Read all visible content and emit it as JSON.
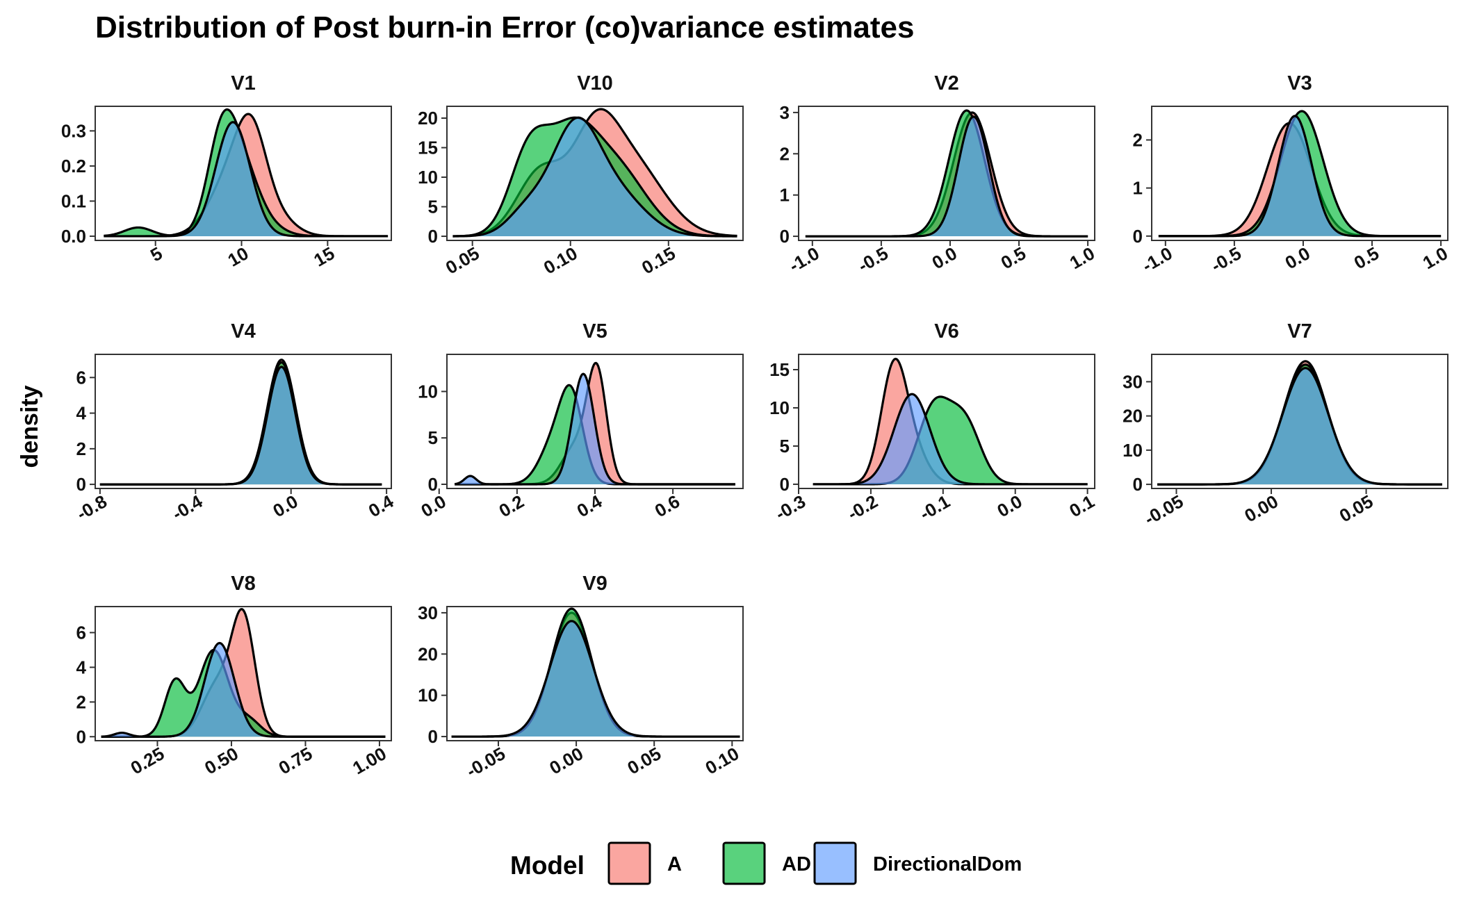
{
  "chart_data": {
    "type": "area",
    "title": "Distribution of Post burn-in Error (co)variance estimates",
    "ylabel": "density",
    "legend": {
      "title": "Model",
      "placement": "bottom",
      "entries": [
        {
          "name": "A",
          "color": "#F8766D"
        },
        {
          "name": "AD",
          "color": "#00BA38"
        },
        {
          "name": "DirectionalDom",
          "color": "#619CFF"
        }
      ]
    },
    "fill_opacity": 0.65,
    "panels": [
      {
        "name": "V1",
        "xlim": [
          1.5,
          18.7
        ],
        "ylim": [
          -0.012,
          0.37
        ],
        "xticks": [
          {
            "value": 5,
            "label": "5"
          },
          {
            "value": 10,
            "label": "10"
          },
          {
            "value": 15,
            "label": "15"
          }
        ],
        "yticks": [
          {
            "value": 0,
            "label": "0.0"
          },
          {
            "value": 0.1,
            "label": "0.1"
          },
          {
            "value": 0.2,
            "label": "0.2"
          },
          {
            "value": 0.3,
            "label": "0.3"
          }
        ],
        "range": [
          2,
          18.5
        ],
        "series": [
          {
            "name": "A",
            "components": [
              {
                "w": 0.55,
                "mu": 10.6,
                "sd": 0.9
              },
              {
                "w": 0.35,
                "mu": 9.3,
                "sd": 1.2
              },
              {
                "w": 0.1,
                "mu": 12.2,
                "sd": 1.0
              }
            ],
            "scale": 0.342,
            "peakx": 10.6
          },
          {
            "name": "AD",
            "components": [
              {
                "w": 0.6,
                "mu": 8.9,
                "sd": 0.85
              },
              {
                "w": 0.3,
                "mu": 10.2,
                "sd": 0.9
              },
              {
                "w": 0.05,
                "mu": 4.0,
                "sd": 0.8
              },
              {
                "w": 0.05,
                "mu": 11.5,
                "sd": 1.0
              }
            ],
            "scale": 0.35,
            "peakx": 8.9
          },
          {
            "name": "DirectionalDom",
            "components": [
              {
                "w": 1.0,
                "mu": 9.5,
                "sd": 1.0
              }
            ],
            "scale": 0.325,
            "peakx": 9.5
          }
        ]
      },
      {
        "name": "V10",
        "xlim": [
          0.037,
          0.188
        ],
        "ylim": [
          -0.7,
          22
        ],
        "xticks": [
          {
            "value": 0.05,
            "label": "0.05"
          },
          {
            "value": 0.1,
            "label": "0.10"
          },
          {
            "value": 0.15,
            "label": "0.15"
          }
        ],
        "yticks": [
          {
            "value": 0,
            "label": "0"
          },
          {
            "value": 5,
            "label": "5"
          },
          {
            "value": 10,
            "label": "10"
          },
          {
            "value": 15,
            "label": "15"
          },
          {
            "value": 20,
            "label": "20"
          }
        ],
        "range": [
          0.04,
          0.185
        ],
        "series": [
          {
            "name": "A",
            "components": [
              {
                "w": 0.35,
                "mu": 0.112,
                "sd": 0.011
              },
              {
                "w": 0.3,
                "mu": 0.085,
                "sd": 0.012
              },
              {
                "w": 0.35,
                "mu": 0.13,
                "sd": 0.017
              }
            ],
            "scale": 21.0,
            "peakx": 0.112
          },
          {
            "name": "AD",
            "components": [
              {
                "w": 0.35,
                "mu": 0.079,
                "sd": 0.01
              },
              {
                "w": 0.35,
                "mu": 0.1,
                "sd": 0.012
              },
              {
                "w": 0.3,
                "mu": 0.122,
                "sd": 0.016
              }
            ],
            "scale": 20.0,
            "peakx": 0.1
          },
          {
            "name": "DirectionalDom",
            "components": [
              {
                "w": 0.6,
                "mu": 0.102,
                "sd": 0.012
              },
              {
                "w": 0.25,
                "mu": 0.123,
                "sd": 0.015
              },
              {
                "w": 0.15,
                "mu": 0.078,
                "sd": 0.01
              }
            ],
            "scale": 19.9,
            "peakx": 0.102
          }
        ]
      },
      {
        "name": "V2",
        "xlim": [
          -1.1,
          1.05
        ],
        "ylim": [
          -0.1,
          3.15
        ],
        "xticks": [
          {
            "value": -1,
            "label": "-1.0"
          },
          {
            "value": -0.5,
            "label": "-0.5"
          },
          {
            "value": 0,
            "label": "0.0"
          },
          {
            "value": 0.5,
            "label": "0.5"
          },
          {
            "value": 1,
            "label": "1.0"
          }
        ],
        "yticks": [
          {
            "value": 0,
            "label": "0"
          },
          {
            "value": 1,
            "label": "1"
          },
          {
            "value": 2,
            "label": "2"
          },
          {
            "value": 3,
            "label": "3"
          }
        ],
        "range": [
          -1.05,
          1.0
        ],
        "series": [
          {
            "name": "A",
            "components": [
              {
                "w": 1.0,
                "mu": 0.16,
                "sd": 0.135
              }
            ],
            "scale": 3.0,
            "peakx": 0.16
          },
          {
            "name": "AD",
            "components": [
              {
                "w": 1.0,
                "mu": 0.12,
                "sd": 0.13
              }
            ],
            "scale": 3.05,
            "peakx": 0.12
          },
          {
            "name": "DirectionalDom",
            "components": [
              {
                "w": 1.0,
                "mu": 0.17,
                "sd": 0.11
              }
            ],
            "scale": 2.9,
            "peakx": 0.17
          }
        ]
      },
      {
        "name": "V3",
        "xlim": [
          -1.1,
          1.05
        ],
        "ylim": [
          -0.09,
          2.7
        ],
        "xticks": [
          {
            "value": -1,
            "label": "-1.0"
          },
          {
            "value": -0.5,
            "label": "-0.5"
          },
          {
            "value": 0,
            "label": "0.0"
          },
          {
            "value": 0.5,
            "label": "0.5"
          },
          {
            "value": 1,
            "label": "1.0"
          }
        ],
        "yticks": [
          {
            "value": 0,
            "label": "0"
          },
          {
            "value": 1,
            "label": "1"
          },
          {
            "value": 2,
            "label": "2"
          }
        ],
        "range": [
          -1.05,
          1.0
        ],
        "series": [
          {
            "name": "A",
            "components": [
              {
                "w": 1.0,
                "mu": -0.1,
                "sd": 0.16
              }
            ],
            "scale": 2.35,
            "peakx": -0.1
          },
          {
            "name": "AD",
            "components": [
              {
                "w": 1.0,
                "mu": -0.01,
                "sd": 0.155
              }
            ],
            "scale": 2.6,
            "peakx": -0.01
          },
          {
            "name": "DirectionalDom",
            "components": [
              {
                "w": 1.0,
                "mu": -0.06,
                "sd": 0.12
              }
            ],
            "scale": 2.5,
            "peakx": -0.06
          }
        ]
      },
      {
        "name": "V4",
        "xlim": [
          -0.82,
          0.42
        ],
        "ylim": [
          -0.23,
          7.3
        ],
        "xticks": [
          {
            "value": -0.8,
            "label": "-0.8"
          },
          {
            "value": -0.4,
            "label": "-0.4"
          },
          {
            "value": 0,
            "label": "0.0"
          },
          {
            "value": 0.4,
            "label": "0.4"
          }
        ],
        "yticks": [
          {
            "value": 0,
            "label": "0"
          },
          {
            "value": 2,
            "label": "2"
          },
          {
            "value": 4,
            "label": "4"
          },
          {
            "value": 6,
            "label": "6"
          }
        ],
        "range": [
          -0.8,
          0.38
        ],
        "series": [
          {
            "name": "A",
            "components": [
              {
                "w": 1.0,
                "mu": -0.04,
                "sd": 0.06
              }
            ],
            "scale": 7.0,
            "peakx": -0.04
          },
          {
            "name": "AD",
            "components": [
              {
                "w": 1.0,
                "mu": -0.04,
                "sd": 0.06
              }
            ],
            "scale": 6.85,
            "peakx": -0.04
          },
          {
            "name": "DirectionalDom",
            "components": [
              {
                "w": 1.0,
                "mu": -0.04,
                "sd": 0.058
              }
            ],
            "scale": 6.6,
            "peakx": -0.04
          }
        ]
      },
      {
        "name": "V5",
        "xlim": [
          0.02,
          0.78
        ],
        "ylim": [
          -0.45,
          14
        ],
        "xticks": [
          {
            "value": 0,
            "label": "0.0"
          },
          {
            "value": 0.2,
            "label": "0.2"
          },
          {
            "value": 0.4,
            "label": "0.4"
          },
          {
            "value": 0.6,
            "label": "0.6"
          }
        ],
        "yticks": [
          {
            "value": 0,
            "label": "0"
          },
          {
            "value": 5,
            "label": "5"
          },
          {
            "value": 10,
            "label": "10"
          }
        ],
        "range": [
          0.04,
          0.76
        ],
        "series": [
          {
            "name": "A",
            "components": [
              {
                "w": 0.75,
                "mu": 0.405,
                "sd": 0.025
              },
              {
                "w": 0.25,
                "mu": 0.35,
                "sd": 0.035
              }
            ],
            "scale": 13.0,
            "peakx": 0.405
          },
          {
            "name": "AD",
            "components": [
              {
                "w": 0.7,
                "mu": 0.34,
                "sd": 0.03
              },
              {
                "w": 0.3,
                "mu": 0.29,
                "sd": 0.035
              }
            ],
            "scale": 10.5,
            "peakx": 0.34
          },
          {
            "name": "DirectionalDom",
            "components": [
              {
                "w": 0.93,
                "mu": 0.37,
                "sd": 0.028
              },
              {
                "w": 0.07,
                "mu": 0.08,
                "sd": 0.015
              }
            ],
            "scale": 11.9,
            "peakx": 0.37
          }
        ]
      },
      {
        "name": "V6",
        "xlim": [
          -0.3,
          0.11
        ],
        "ylim": [
          -0.55,
          17
        ],
        "xticks": [
          {
            "value": -0.3,
            "label": "-0.3"
          },
          {
            "value": -0.2,
            "label": "-0.2"
          },
          {
            "value": -0.1,
            "label": "-0.1"
          },
          {
            "value": 0,
            "label": "0.0"
          },
          {
            "value": 0.1,
            "label": "0.1"
          }
        ],
        "yticks": [
          {
            "value": 0,
            "label": "0"
          },
          {
            "value": 5,
            "label": "5"
          },
          {
            "value": 10,
            "label": "10"
          },
          {
            "value": 15,
            "label": "15"
          }
        ],
        "range": [
          -0.28,
          0.1
        ],
        "series": [
          {
            "name": "A",
            "components": [
              {
                "w": 0.8,
                "mu": -0.168,
                "sd": 0.018
              },
              {
                "w": 0.2,
                "mu": -0.14,
                "sd": 0.02
              }
            ],
            "scale": 16.3,
            "peakx": -0.168
          },
          {
            "name": "AD",
            "components": [
              {
                "w": 0.55,
                "mu": -0.113,
                "sd": 0.022
              },
              {
                "w": 0.45,
                "mu": -0.07,
                "sd": 0.022
              }
            ],
            "scale": 11.0,
            "peakx": -0.113
          },
          {
            "name": "DirectionalDom",
            "components": [
              {
                "w": 1.0,
                "mu": -0.143,
                "sd": 0.025
              }
            ],
            "scale": 11.8,
            "peakx": -0.143
          }
        ]
      },
      {
        "name": "V7",
        "xlim": [
          -0.063,
          0.093
        ],
        "ylim": [
          -1.2,
          38
        ],
        "xticks": [
          {
            "value": -0.05,
            "label": "-0.05"
          },
          {
            "value": 0,
            "label": "0.00"
          },
          {
            "value": 0.05,
            "label": "0.05"
          }
        ],
        "yticks": [
          {
            "value": 0,
            "label": "0"
          },
          {
            "value": 10,
            "label": "10"
          },
          {
            "value": 20,
            "label": "20"
          },
          {
            "value": 30,
            "label": "30"
          }
        ],
        "range": [
          -0.06,
          0.09
        ],
        "series": [
          {
            "name": "A",
            "components": [
              {
                "w": 1.0,
                "mu": 0.018,
                "sd": 0.0115
              }
            ],
            "scale": 36.0,
            "peakx": 0.018
          },
          {
            "name": "AD",
            "components": [
              {
                "w": 1.0,
                "mu": 0.018,
                "sd": 0.0118
              }
            ],
            "scale": 35.0,
            "peakx": 0.018
          },
          {
            "name": "DirectionalDom",
            "components": [
              {
                "w": 1.0,
                "mu": 0.018,
                "sd": 0.012
              }
            ],
            "scale": 34.0,
            "peakx": 0.018
          }
        ]
      },
      {
        "name": "V8",
        "xlim": [
          0.04,
          1.04
        ],
        "ylim": [
          -0.23,
          7.5
        ],
        "xticks": [
          {
            "value": 0.25,
            "label": "0.25"
          },
          {
            "value": 0.5,
            "label": "0.50"
          },
          {
            "value": 0.75,
            "label": "0.75"
          },
          {
            "value": 1.0,
            "label": "1.00"
          }
        ],
        "yticks": [
          {
            "value": 0,
            "label": "0"
          },
          {
            "value": 2,
            "label": "2"
          },
          {
            "value": 4,
            "label": "4"
          },
          {
            "value": 6,
            "label": "6"
          }
        ],
        "range": [
          0.06,
          1.02
        ],
        "series": [
          {
            "name": "A",
            "components": [
              {
                "w": 0.7,
                "mu": 0.54,
                "sd": 0.04
              },
              {
                "w": 0.3,
                "mu": 0.45,
                "sd": 0.05
              }
            ],
            "scale": 7.3,
            "peakx": 0.54
          },
          {
            "name": "AD",
            "components": [
              {
                "w": 0.35,
                "mu": 0.31,
                "sd": 0.035
              },
              {
                "w": 0.55,
                "mu": 0.44,
                "sd": 0.05
              },
              {
                "w": 0.1,
                "mu": 0.56,
                "sd": 0.04
              }
            ],
            "scale": 5.0,
            "peakx": 0.44
          },
          {
            "name": "DirectionalDom",
            "components": [
              {
                "w": 0.96,
                "mu": 0.46,
                "sd": 0.05
              },
              {
                "w": 0.04,
                "mu": 0.13,
                "sd": 0.025
              }
            ],
            "scale": 5.4,
            "peakx": 0.46
          }
        ]
      },
      {
        "name": "V9",
        "xlim": [
          -0.083,
          0.107
        ],
        "ylim": [
          -1.0,
          31.5
        ],
        "xticks": [
          {
            "value": -0.05,
            "label": "-0.05"
          },
          {
            "value": 0,
            "label": "0.00"
          },
          {
            "value": 0.05,
            "label": "0.05"
          },
          {
            "value": 0.1,
            "label": "0.10"
          }
        ],
        "yticks": [
          {
            "value": 0,
            "label": "0"
          },
          {
            "value": 10,
            "label": "10"
          },
          {
            "value": 20,
            "label": "20"
          },
          {
            "value": 30,
            "label": "30"
          }
        ],
        "range": [
          -0.08,
          0.105
        ],
        "series": [
          {
            "name": "A",
            "components": [
              {
                "w": 1.0,
                "mu": -0.003,
                "sd": 0.013
              }
            ],
            "scale": 30.0,
            "peakx": -0.003
          },
          {
            "name": "AD",
            "components": [
              {
                "w": 1.0,
                "mu": -0.003,
                "sd": 0.0128
              }
            ],
            "scale": 31.0,
            "peakx": -0.003
          },
          {
            "name": "DirectionalDom",
            "components": [
              {
                "w": 1.0,
                "mu": -0.003,
                "sd": 0.0138
              }
            ],
            "scale": 28.0,
            "peakx": -0.003
          }
        ]
      }
    ]
  }
}
